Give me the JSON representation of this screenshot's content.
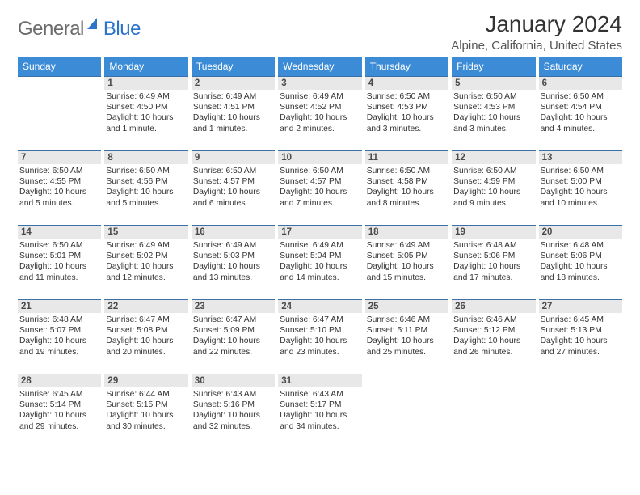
{
  "logo": {
    "text1": "General",
    "text2": "Blue"
  },
  "title": "January 2024",
  "location": "Alpine, California, United States",
  "header_color": "#3b8bd6",
  "border_color": "#3b6fa8",
  "daynum_bg": "#e8e8e8",
  "days_of_week": [
    "Sunday",
    "Monday",
    "Tuesday",
    "Wednesday",
    "Thursday",
    "Friday",
    "Saturday"
  ],
  "weeks": [
    [
      {
        "n": "",
        "sunrise": "",
        "sunset": "",
        "daylight": ""
      },
      {
        "n": "1",
        "sunrise": "Sunrise: 6:49 AM",
        "sunset": "Sunset: 4:50 PM",
        "daylight": "Daylight: 10 hours and 1 minute."
      },
      {
        "n": "2",
        "sunrise": "Sunrise: 6:49 AM",
        "sunset": "Sunset: 4:51 PM",
        "daylight": "Daylight: 10 hours and 1 minutes."
      },
      {
        "n": "3",
        "sunrise": "Sunrise: 6:49 AM",
        "sunset": "Sunset: 4:52 PM",
        "daylight": "Daylight: 10 hours and 2 minutes."
      },
      {
        "n": "4",
        "sunrise": "Sunrise: 6:50 AM",
        "sunset": "Sunset: 4:53 PM",
        "daylight": "Daylight: 10 hours and 3 minutes."
      },
      {
        "n": "5",
        "sunrise": "Sunrise: 6:50 AM",
        "sunset": "Sunset: 4:53 PM",
        "daylight": "Daylight: 10 hours and 3 minutes."
      },
      {
        "n": "6",
        "sunrise": "Sunrise: 6:50 AM",
        "sunset": "Sunset: 4:54 PM",
        "daylight": "Daylight: 10 hours and 4 minutes."
      }
    ],
    [
      {
        "n": "7",
        "sunrise": "Sunrise: 6:50 AM",
        "sunset": "Sunset: 4:55 PM",
        "daylight": "Daylight: 10 hours and 5 minutes."
      },
      {
        "n": "8",
        "sunrise": "Sunrise: 6:50 AM",
        "sunset": "Sunset: 4:56 PM",
        "daylight": "Daylight: 10 hours and 5 minutes."
      },
      {
        "n": "9",
        "sunrise": "Sunrise: 6:50 AM",
        "sunset": "Sunset: 4:57 PM",
        "daylight": "Daylight: 10 hours and 6 minutes."
      },
      {
        "n": "10",
        "sunrise": "Sunrise: 6:50 AM",
        "sunset": "Sunset: 4:57 PM",
        "daylight": "Daylight: 10 hours and 7 minutes."
      },
      {
        "n": "11",
        "sunrise": "Sunrise: 6:50 AM",
        "sunset": "Sunset: 4:58 PM",
        "daylight": "Daylight: 10 hours and 8 minutes."
      },
      {
        "n": "12",
        "sunrise": "Sunrise: 6:50 AM",
        "sunset": "Sunset: 4:59 PM",
        "daylight": "Daylight: 10 hours and 9 minutes."
      },
      {
        "n": "13",
        "sunrise": "Sunrise: 6:50 AM",
        "sunset": "Sunset: 5:00 PM",
        "daylight": "Daylight: 10 hours and 10 minutes."
      }
    ],
    [
      {
        "n": "14",
        "sunrise": "Sunrise: 6:50 AM",
        "sunset": "Sunset: 5:01 PM",
        "daylight": "Daylight: 10 hours and 11 minutes."
      },
      {
        "n": "15",
        "sunrise": "Sunrise: 6:49 AM",
        "sunset": "Sunset: 5:02 PM",
        "daylight": "Daylight: 10 hours and 12 minutes."
      },
      {
        "n": "16",
        "sunrise": "Sunrise: 6:49 AM",
        "sunset": "Sunset: 5:03 PM",
        "daylight": "Daylight: 10 hours and 13 minutes."
      },
      {
        "n": "17",
        "sunrise": "Sunrise: 6:49 AM",
        "sunset": "Sunset: 5:04 PM",
        "daylight": "Daylight: 10 hours and 14 minutes."
      },
      {
        "n": "18",
        "sunrise": "Sunrise: 6:49 AM",
        "sunset": "Sunset: 5:05 PM",
        "daylight": "Daylight: 10 hours and 15 minutes."
      },
      {
        "n": "19",
        "sunrise": "Sunrise: 6:48 AM",
        "sunset": "Sunset: 5:06 PM",
        "daylight": "Daylight: 10 hours and 17 minutes."
      },
      {
        "n": "20",
        "sunrise": "Sunrise: 6:48 AM",
        "sunset": "Sunset: 5:06 PM",
        "daylight": "Daylight: 10 hours and 18 minutes."
      }
    ],
    [
      {
        "n": "21",
        "sunrise": "Sunrise: 6:48 AM",
        "sunset": "Sunset: 5:07 PM",
        "daylight": "Daylight: 10 hours and 19 minutes."
      },
      {
        "n": "22",
        "sunrise": "Sunrise: 6:47 AM",
        "sunset": "Sunset: 5:08 PM",
        "daylight": "Daylight: 10 hours and 20 minutes."
      },
      {
        "n": "23",
        "sunrise": "Sunrise: 6:47 AM",
        "sunset": "Sunset: 5:09 PM",
        "daylight": "Daylight: 10 hours and 22 minutes."
      },
      {
        "n": "24",
        "sunrise": "Sunrise: 6:47 AM",
        "sunset": "Sunset: 5:10 PM",
        "daylight": "Daylight: 10 hours and 23 minutes."
      },
      {
        "n": "25",
        "sunrise": "Sunrise: 6:46 AM",
        "sunset": "Sunset: 5:11 PM",
        "daylight": "Daylight: 10 hours and 25 minutes."
      },
      {
        "n": "26",
        "sunrise": "Sunrise: 6:46 AM",
        "sunset": "Sunset: 5:12 PM",
        "daylight": "Daylight: 10 hours and 26 minutes."
      },
      {
        "n": "27",
        "sunrise": "Sunrise: 6:45 AM",
        "sunset": "Sunset: 5:13 PM",
        "daylight": "Daylight: 10 hours and 27 minutes."
      }
    ],
    [
      {
        "n": "28",
        "sunrise": "Sunrise: 6:45 AM",
        "sunset": "Sunset: 5:14 PM",
        "daylight": "Daylight: 10 hours and 29 minutes."
      },
      {
        "n": "29",
        "sunrise": "Sunrise: 6:44 AM",
        "sunset": "Sunset: 5:15 PM",
        "daylight": "Daylight: 10 hours and 30 minutes."
      },
      {
        "n": "30",
        "sunrise": "Sunrise: 6:43 AM",
        "sunset": "Sunset: 5:16 PM",
        "daylight": "Daylight: 10 hours and 32 minutes."
      },
      {
        "n": "31",
        "sunrise": "Sunrise: 6:43 AM",
        "sunset": "Sunset: 5:17 PM",
        "daylight": "Daylight: 10 hours and 34 minutes."
      },
      {
        "n": "",
        "sunrise": "",
        "sunset": "",
        "daylight": ""
      },
      {
        "n": "",
        "sunrise": "",
        "sunset": "",
        "daylight": ""
      },
      {
        "n": "",
        "sunrise": "",
        "sunset": "",
        "daylight": ""
      }
    ]
  ]
}
